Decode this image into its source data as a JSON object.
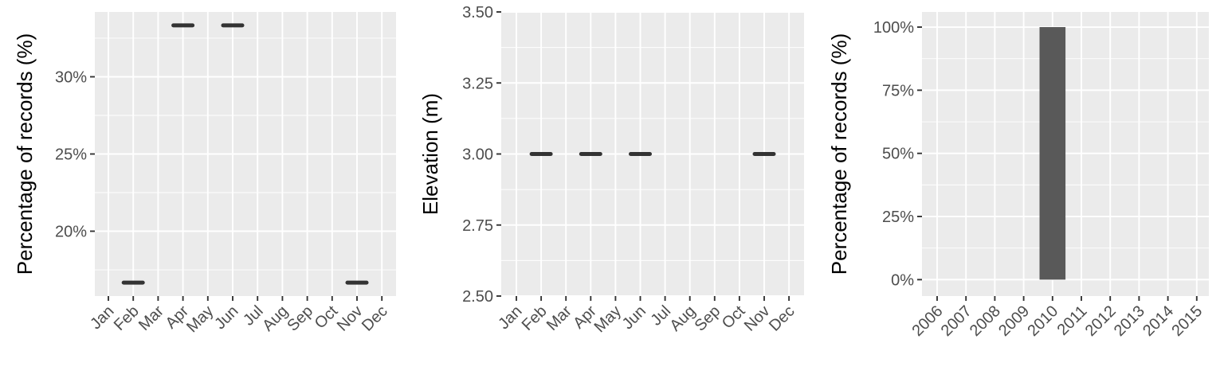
{
  "chart_data": [
    {
      "type": "scatter",
      "marker": "horizontal-bar",
      "ylabel": "Percentage of records (%)",
      "categories": [
        "Jan",
        "Feb",
        "Mar",
        "Apr",
        "May",
        "Jun",
        "Jul",
        "Aug",
        "Sep",
        "Oct",
        "Nov",
        "Dec"
      ],
      "values": [
        null,
        16.67,
        null,
        33.33,
        null,
        33.33,
        null,
        null,
        null,
        null,
        16.67,
        null
      ],
      "y_ticks": [
        20,
        25,
        30
      ],
      "y_tick_labels": [
        "20%",
        "25%",
        "30%"
      ],
      "ylim": [
        15.8,
        34.2
      ],
      "grid": true,
      "mark_color": "#333333"
    },
    {
      "type": "scatter",
      "marker": "horizontal-bar",
      "ylabel": "Elevation (m)",
      "categories": [
        "Jan",
        "Feb",
        "Mar",
        "Apr",
        "May",
        "Jun",
        "Jul",
        "Aug",
        "Sep",
        "Oct",
        "Nov",
        "Dec"
      ],
      "values": [
        null,
        3.0,
        null,
        3.0,
        null,
        3.0,
        null,
        null,
        null,
        null,
        3.0,
        null
      ],
      "y_ticks": [
        2.5,
        2.75,
        3.0,
        3.25,
        3.5
      ],
      "y_tick_labels": [
        "2.50",
        "2.75",
        "3.00",
        "3.25",
        "3.50"
      ],
      "ylim": [
        2.5,
        3.5
      ],
      "grid": true,
      "mark_color": "#333333"
    },
    {
      "type": "bar",
      "ylabel": "Percentage of records (%)",
      "categories": [
        "2006",
        "2007",
        "2008",
        "2009",
        "2010",
        "2011",
        "2012",
        "2013",
        "2014",
        "2015"
      ],
      "values": [
        0,
        0,
        0,
        0,
        100,
        0,
        0,
        0,
        0,
        0
      ],
      "y_ticks": [
        0,
        25,
        50,
        75,
        100
      ],
      "y_tick_labels": [
        "0%",
        "25%",
        "50%",
        "75%",
        "100%"
      ],
      "ylim": [
        -6.5,
        106
      ],
      "grid": true,
      "bar_color": "#595959"
    }
  ]
}
